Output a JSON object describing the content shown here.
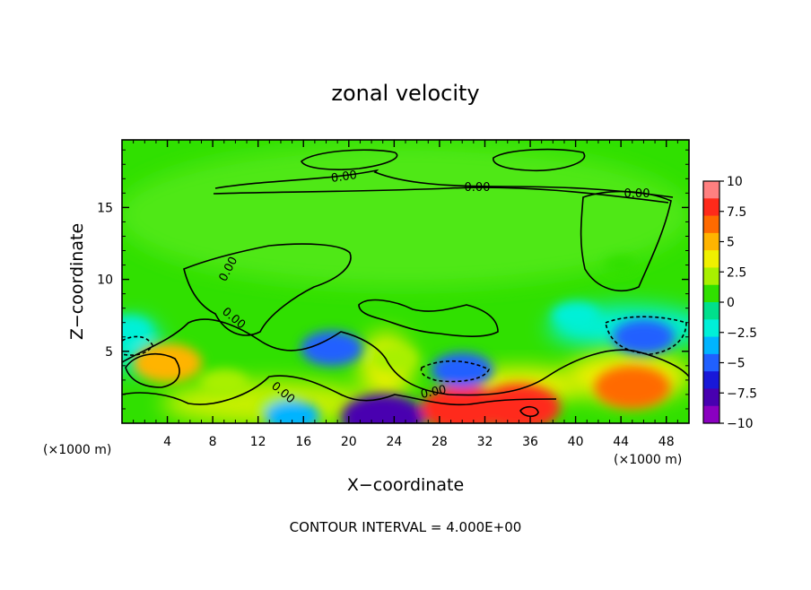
{
  "chart_data": {
    "type": "heatmap",
    "title": "zonal velocity",
    "xlabel": "X−coordinate",
    "ylabel": "Z−coordinate",
    "x_unit_left": "(×1000 m)",
    "x_unit_right": "(×1000 m)",
    "xlim": [
      0,
      50
    ],
    "ylim": [
      0,
      19.7
    ],
    "xticks": [
      4,
      8,
      12,
      16,
      20,
      24,
      28,
      32,
      36,
      40,
      44,
      48
    ],
    "yticks": [
      5,
      10,
      15
    ],
    "colorbar": {
      "ticks": [
        "10",
        "7.5",
        "5",
        "2.5",
        "0",
        "−2.5",
        "−5",
        "−7.5",
        "−10"
      ],
      "values": [
        10,
        7.5,
        5,
        2.5,
        0,
        -2.5,
        -5,
        -7.5,
        -10
      ],
      "colors": [
        "#ff8080",
        "#ff2a1a",
        "#ff6a00",
        "#ffb400",
        "#f0f000",
        "#a8f000",
        "#30e000",
        "#00e08c",
        "#00f0d8",
        "#00b4ff",
        "#2060ff",
        "#1818d8",
        "#4800b0",
        "#8a00c0"
      ]
    },
    "contour_labels": [
      "0.00",
      "0.00",
      "0.00",
      "0.00",
      "0.00",
      "0.00",
      "0.00"
    ],
    "contour_interval_text": "CONTOUR INTERVAL = 4.000E+00",
    "background_level": 0,
    "features": [
      {
        "x": 4,
        "z": 4.2,
        "value": 6
      },
      {
        "x": 9,
        "z": 2.8,
        "value": 3
      },
      {
        "x": 18.5,
        "z": 5.2,
        "value": -5
      },
      {
        "x": 23,
        "z": 0.4,
        "value": -8
      },
      {
        "x": 30,
        "z": 1,
        "value": 8
      },
      {
        "x": 35,
        "z": 1.1,
        "value": 8
      },
      {
        "x": 30,
        "z": 3.7,
        "value": -5
      },
      {
        "x": 45,
        "z": 2.5,
        "value": 7
      },
      {
        "x": 46,
        "z": 6,
        "value": -5
      },
      {
        "x": 0.5,
        "z": 6.5,
        "value": -3
      },
      {
        "x": 14,
        "z": 1.2,
        "value": 3
      },
      {
        "x": 24,
        "z": 4.5,
        "value": 3
      },
      {
        "x": 44,
        "z": 11,
        "value": 1
      },
      {
        "x": 40,
        "z": 7.5,
        "value": -3
      },
      {
        "x": 15,
        "z": 0.5,
        "value": -4
      }
    ]
  }
}
